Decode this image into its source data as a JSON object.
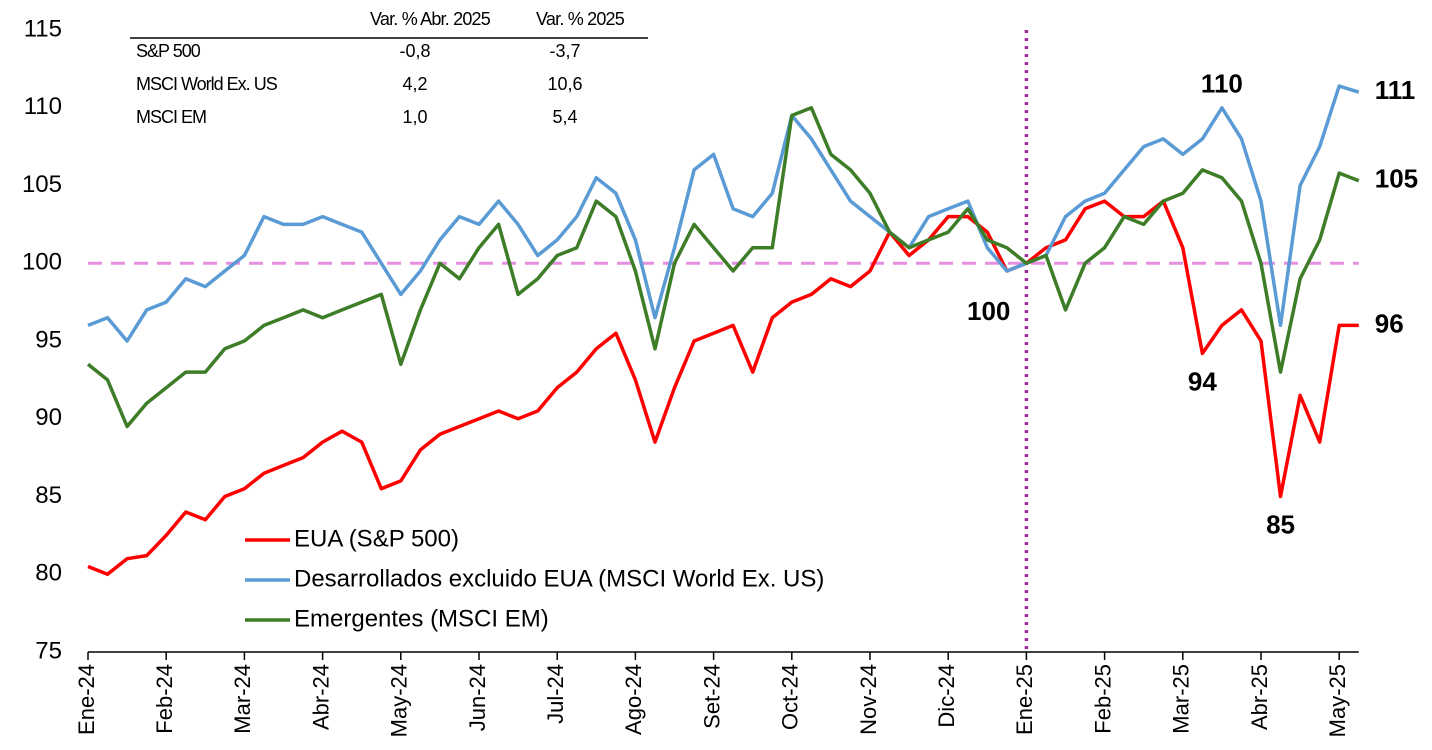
{
  "chart_data": {
    "type": "line",
    "categories": [
      "Ene-24",
      null,
      null,
      null,
      "Feb-24",
      null,
      null,
      null,
      "Mar-24",
      null,
      null,
      null,
      "Abr-24",
      null,
      null,
      null,
      "May-24",
      null,
      null,
      null,
      "Jun-24",
      null,
      null,
      null,
      "Jul-24",
      null,
      null,
      null,
      "Ago-24",
      null,
      null,
      null,
      "Set-24",
      null,
      null,
      null,
      "Oct-24",
      null,
      null,
      null,
      "Nov-24",
      null,
      null,
      null,
      "Dic-24",
      null,
      null,
      null,
      "Ene-25",
      null,
      null,
      null,
      "Feb-25",
      null,
      null,
      null,
      "Mar-25",
      null,
      null,
      null,
      "Abr-25",
      null,
      null,
      null,
      "May-25",
      null
    ],
    "series": [
      {
        "name": "EUA (S&P 500)",
        "color": "#ff0000",
        "values": [
          80.5,
          80,
          81,
          81.2,
          82.5,
          84,
          83.5,
          85,
          85.5,
          86.5,
          87,
          87.5,
          88.5,
          89.2,
          88.5,
          85.5,
          86,
          88,
          89,
          89.5,
          90,
          90.5,
          90,
          90.5,
          92,
          93,
          94.5,
          95.5,
          92.5,
          88.5,
          92,
          95,
          95.5,
          96,
          93,
          96.5,
          97.5,
          98,
          99,
          98.5,
          99.5,
          102,
          100.5,
          101.5,
          103,
          103,
          102,
          99.5,
          100,
          101,
          101.5,
          103.5,
          104,
          103,
          103,
          104,
          101,
          94.2,
          96,
          97,
          95,
          85,
          91.5,
          88.5,
          96,
          96
        ],
        "value_labels": [
          null,
          null,
          null,
          null,
          null,
          null,
          null,
          null,
          null,
          null,
          null,
          null,
          null,
          null,
          null,
          null,
          null,
          null,
          null,
          null,
          null,
          null,
          null,
          null,
          null,
          null,
          null,
          null,
          null,
          null,
          null,
          null,
          null,
          null,
          null,
          null,
          null,
          null,
          null,
          null,
          null,
          null,
          null,
          null,
          null,
          null,
          null,
          null,
          null,
          null,
          null,
          null,
          null,
          null,
          null,
          null,
          null,
          "94",
          null,
          null,
          null,
          "85",
          null,
          null,
          null,
          "96"
        ]
      },
      {
        "name": "Desarrollados excluido EUA (MSCI World Ex. US)",
        "color": "#5b9bd5",
        "values": [
          96,
          96.5,
          95,
          97,
          97.5,
          99,
          98.5,
          99.5,
          100.5,
          103,
          102.5,
          102.5,
          103,
          102.5,
          102,
          100,
          98,
          99.5,
          101.5,
          103,
          102.5,
          104,
          102.5,
          100.5,
          101.5,
          103,
          105.5,
          104.5,
          101.5,
          96.5,
          101,
          106,
          107,
          103.5,
          103,
          104.5,
          109.5,
          108,
          106,
          104,
          103,
          102,
          101,
          103,
          103.5,
          104,
          101,
          99.5,
          100,
          100.5,
          103,
          104,
          104.5,
          106,
          107.5,
          108,
          107,
          108,
          110,
          108,
          104,
          96,
          105,
          107.5,
          111.4,
          111
        ],
        "value_labels": [
          null,
          null,
          null,
          null,
          null,
          null,
          null,
          null,
          null,
          null,
          null,
          null,
          null,
          null,
          null,
          null,
          null,
          null,
          null,
          null,
          null,
          null,
          null,
          null,
          null,
          null,
          null,
          null,
          null,
          null,
          null,
          null,
          null,
          null,
          null,
          null,
          null,
          null,
          null,
          null,
          null,
          null,
          null,
          null,
          null,
          null,
          null,
          null,
          null,
          null,
          null,
          null,
          null,
          null,
          null,
          null,
          null,
          null,
          "110",
          null,
          null,
          null,
          null,
          null,
          null,
          "111"
        ]
      },
      {
        "name": "Emergentes (MSCI EM)",
        "color": "#3e7d28",
        "values": [
          93.5,
          92.5,
          89.5,
          91,
          92,
          93,
          93,
          94.5,
          95,
          96,
          96.5,
          97,
          96.5,
          97,
          97.5,
          98,
          93.5,
          97,
          100,
          99,
          101,
          102.5,
          98,
          99,
          100.5,
          101,
          104,
          103,
          99.5,
          94.5,
          100,
          102.5,
          101,
          99.5,
          101,
          101,
          109.5,
          110,
          107,
          106,
          104.5,
          102,
          101,
          101.5,
          102,
          103.5,
          101.5,
          101,
          100,
          100.5,
          97,
          100,
          101,
          103,
          102.5,
          104,
          104.5,
          106,
          105.5,
          104,
          100,
          93,
          99,
          101.5,
          105.8,
          105.3
        ],
        "value_labels": [
          null,
          null,
          null,
          null,
          null,
          null,
          null,
          null,
          null,
          null,
          null,
          null,
          null,
          null,
          null,
          null,
          null,
          null,
          null,
          null,
          null,
          null,
          null,
          null,
          null,
          null,
          null,
          null,
          null,
          null,
          null,
          null,
          null,
          null,
          null,
          null,
          null,
          null,
          null,
          null,
          null,
          null,
          null,
          null,
          null,
          null,
          null,
          null,
          null,
          null,
          null,
          null,
          null,
          null,
          null,
          null,
          null,
          null,
          null,
          null,
          null,
          null,
          null,
          null,
          null,
          "105"
        ]
      }
    ],
    "ylim": [
      75,
      115
    ],
    "yticks": [
      75,
      80,
      85,
      90,
      95,
      100,
      105,
      110,
      115
    ],
    "hline": 100,
    "hline_label": "100",
    "vline_category": "Ene-25",
    "legend": "lower left",
    "table": {
      "columns": [
        "Var. % Abr. 2025",
        "Var. % 2025"
      ],
      "rows": [
        {
          "name": "S&P 500",
          "values": [
            "-0,8",
            "-3,7"
          ]
        },
        {
          "name": "MSCI World Ex. US",
          "values": [
            "4,2",
            "10,6"
          ]
        },
        {
          "name": "MSCI EM",
          "values": [
            "1,0",
            "5,4"
          ]
        }
      ]
    }
  }
}
